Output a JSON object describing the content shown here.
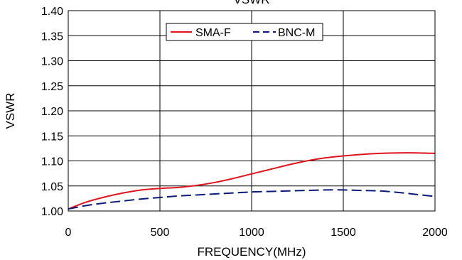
{
  "chart_data": {
    "type": "line",
    "title": "VSWR",
    "xlabel": "FREQUENCY(MHz)",
    "ylabel": "VSWR",
    "xlim": [
      0,
      2000
    ],
    "ylim": [
      1.0,
      1.4
    ],
    "x_ticks": [
      "0",
      "500",
      "1000",
      "1500",
      "2000"
    ],
    "y_ticks": [
      "1.00",
      "1.05",
      "1.10",
      "1.15",
      "1.20",
      "1.25",
      "1.30",
      "1.35",
      "1.40"
    ],
    "grid": true,
    "legend_position": "top-center",
    "series": [
      {
        "name": "SMA-F",
        "color": "#e0141e",
        "style": "solid",
        "x": [
          0,
          100,
          200,
          300,
          400,
          500,
          600,
          700,
          800,
          900,
          1000,
          1100,
          1200,
          1300,
          1400,
          1500,
          1600,
          1700,
          1800,
          1900,
          2000
        ],
        "y": [
          1.004,
          1.018,
          1.028,
          1.036,
          1.042,
          1.045,
          1.047,
          1.051,
          1.057,
          1.065,
          1.074,
          1.083,
          1.092,
          1.1,
          1.106,
          1.11,
          1.113,
          1.115,
          1.116,
          1.116,
          1.115
        ]
      },
      {
        "name": "BNC-M",
        "color": "#0a1a7a",
        "style": "dashed",
        "x": [
          0,
          100,
          200,
          300,
          400,
          500,
          600,
          700,
          800,
          900,
          1000,
          1100,
          1200,
          1300,
          1400,
          1500,
          1600,
          1700,
          1800,
          1900,
          2000
        ],
        "y": [
          1.004,
          1.011,
          1.016,
          1.02,
          1.024,
          1.027,
          1.03,
          1.032,
          1.034,
          1.036,
          1.038,
          1.039,
          1.04,
          1.041,
          1.042,
          1.042,
          1.041,
          1.04,
          1.037,
          1.033,
          1.029
        ]
      }
    ]
  }
}
